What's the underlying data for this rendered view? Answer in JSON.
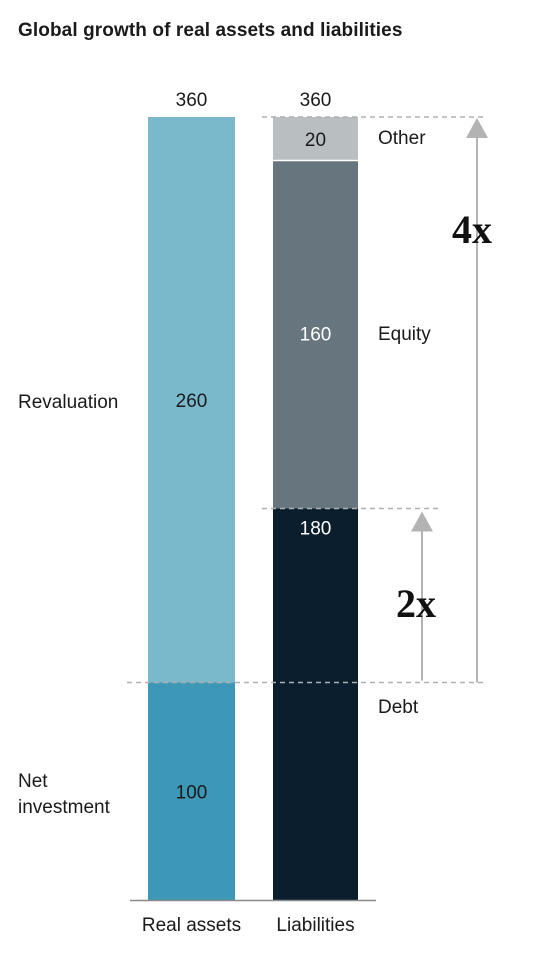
{
  "title": "Global growth of real assets and liabilities",
  "chart_data": {
    "type": "bar",
    "stacked": true,
    "title": "Global growth of real assets and liabilities",
    "categories": [
      "Real assets",
      "Liabilities"
    ],
    "totals": [
      360,
      360
    ],
    "ylim": [
      0,
      360
    ],
    "grid": false,
    "series": [
      {
        "name": "Net investment",
        "bar": "Real assets",
        "value": 100,
        "color": "#3d97b6",
        "text_color": "#1a1a1a"
      },
      {
        "name": "Revaluation",
        "bar": "Real assets",
        "value": 260,
        "color": "#7ab8cc",
        "text_color": "#1a1a1a"
      },
      {
        "name": "Debt",
        "bar": "Liabilities",
        "value": 180,
        "color": "#0b1e2d",
        "text_color": "#ffffff"
      },
      {
        "name": "Equity",
        "bar": "Liabilities",
        "value": 160,
        "color": "#66757e",
        "text_color": "#ffffff"
      },
      {
        "name": "Other",
        "bar": "Liabilities",
        "value": 20,
        "color": "#b9bec1",
        "text_color": "#1a1a1a"
      }
    ],
    "left_labels": [
      {
        "text": "Revaluation",
        "series": "Revaluation"
      },
      {
        "text": "Net investment",
        "lines": [
          "Net",
          "investment"
        ],
        "series": "Net investment"
      }
    ],
    "right_labels": [
      {
        "text": "Other",
        "series": "Other"
      },
      {
        "text": "Equity",
        "series": "Equity"
      },
      {
        "text": "Debt",
        "series": "Debt"
      }
    ],
    "annotations": [
      {
        "text": "4x",
        "from": 100,
        "to": 360
      },
      {
        "text": "2x",
        "from": 100,
        "to": 180
      }
    ]
  }
}
